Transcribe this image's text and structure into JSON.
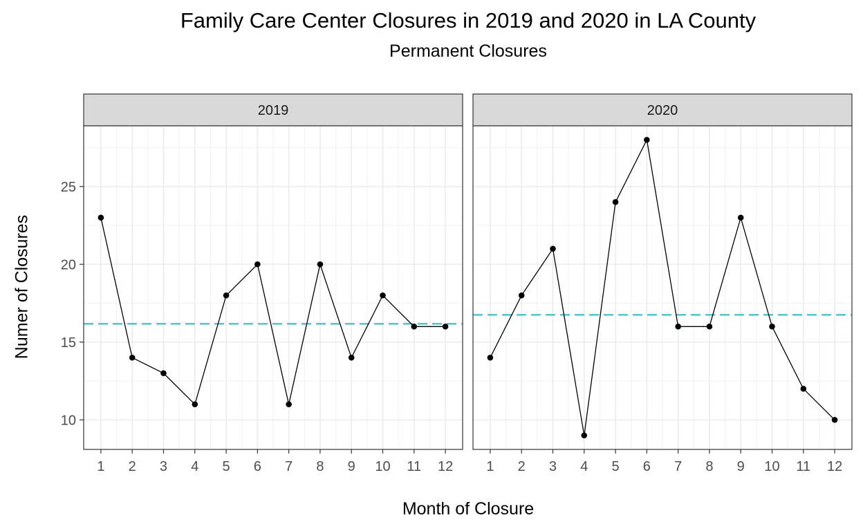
{
  "chart_data": {
    "type": "line",
    "title": "Family Care Center Closures in 2019 and 2020 in LA County",
    "subtitle": "Permanent Closures",
    "xlabel": "Month of Closure",
    "ylabel": "Numer of Closures",
    "x": [
      1,
      2,
      3,
      4,
      5,
      6,
      7,
      8,
      9,
      10,
      11,
      12
    ],
    "x_ticks": [
      "1",
      "2",
      "3",
      "4",
      "5",
      "6",
      "7",
      "8",
      "9",
      "10",
      "11",
      "12"
    ],
    "y_ticks": [
      10,
      15,
      20,
      25
    ],
    "ylim": [
      8.1,
      28.9
    ],
    "xlim": [
      0.45,
      12.55
    ],
    "grid": true,
    "line_color": "#000000",
    "mean_line_color": "#2AB7B7",
    "panel_strip_color": "#D9D9D9",
    "panels": [
      {
        "label": "2019",
        "values": [
          23,
          14,
          13,
          11,
          18,
          20,
          11,
          20,
          14,
          18,
          16,
          16
        ],
        "mean": 16.17
      },
      {
        "label": "2020",
        "values": [
          14,
          18,
          21,
          9,
          24,
          28,
          16,
          16,
          23,
          16,
          12,
          10
        ],
        "mean": 16.75
      }
    ]
  }
}
